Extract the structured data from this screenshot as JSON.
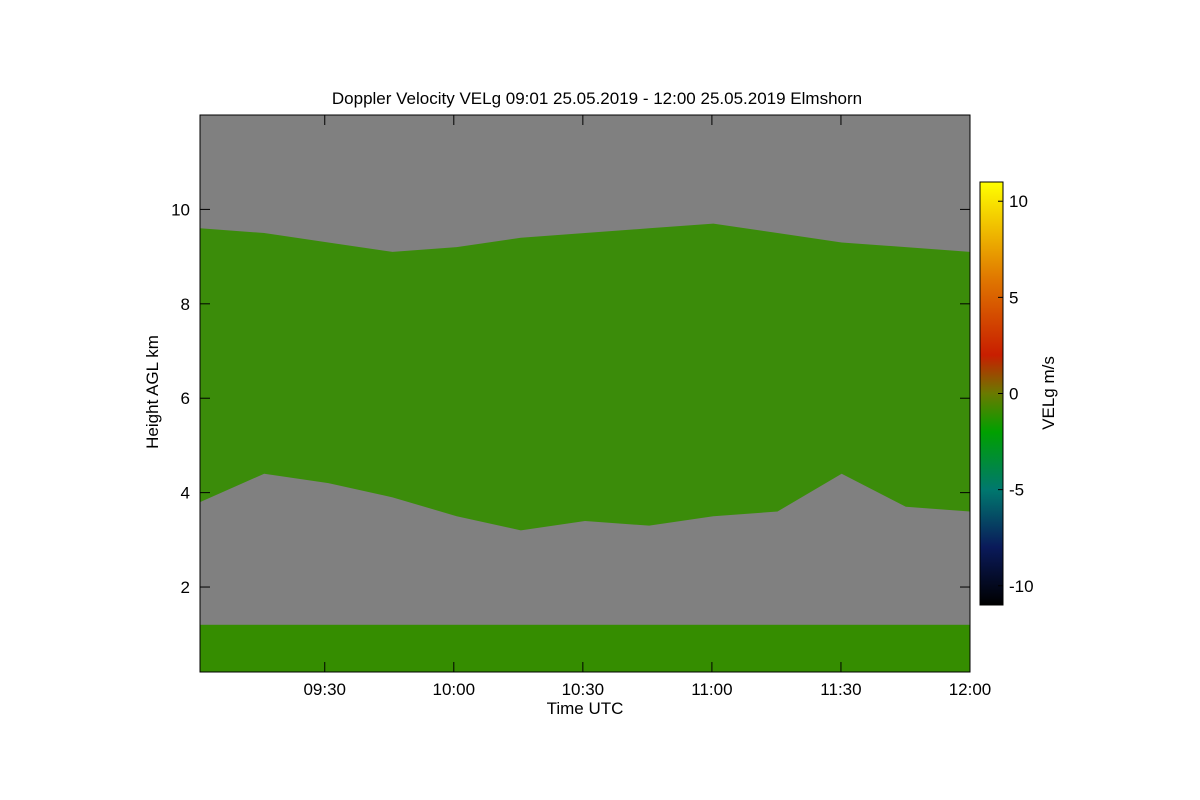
{
  "chart_data": {
    "type": "heatmap",
    "title": "Doppler Velocity VELg   09:01 25.05.2019 - 12:00 25.05.2019 Elmshorn",
    "xlabel": "Time UTC",
    "ylabel": "Height AGL km",
    "xlim": [
      "09:01",
      "12:00"
    ],
    "ylim": [
      0.2,
      12.0
    ],
    "x_ticks": [
      "09:30",
      "10:00",
      "10:30",
      "11:00",
      "11:30",
      "12:00"
    ],
    "y_ticks": [
      2,
      4,
      6,
      8,
      10
    ],
    "colorbar": {
      "label": "VELg m/s",
      "range": [
        -11,
        11
      ],
      "ticks": [
        10,
        5,
        0,
        -5,
        -10
      ],
      "colormap": [
        {
          "v": -11,
          "color": "#000000"
        },
        {
          "v": -8,
          "color": "#0a1a5a"
        },
        {
          "v": -5,
          "color": "#00786e"
        },
        {
          "v": -2,
          "color": "#00a000"
        },
        {
          "v": 0,
          "color": "#6a7a00"
        },
        {
          "v": 2,
          "color": "#c81e00"
        },
        {
          "v": 6,
          "color": "#e07800"
        },
        {
          "v": 11,
          "color": "#ffff00"
        }
      ]
    },
    "no_data_color": "#808080",
    "cloud_layer": {
      "top_km": [
        9.6,
        9.5,
        9.3,
        9.1,
        9.2,
        9.4,
        9.5,
        9.6,
        9.7,
        9.5,
        9.3,
        9.2,
        9.1
      ],
      "base_km": [
        3.8,
        4.4,
        4.2,
        3.9,
        3.5,
        3.2,
        3.4,
        3.3,
        3.5,
        3.6,
        4.4,
        3.7,
        3.6
      ],
      "velocity_ms": -1
    },
    "boundary_layer": {
      "top_km": 1.2,
      "velocity_ms": -1
    }
  }
}
